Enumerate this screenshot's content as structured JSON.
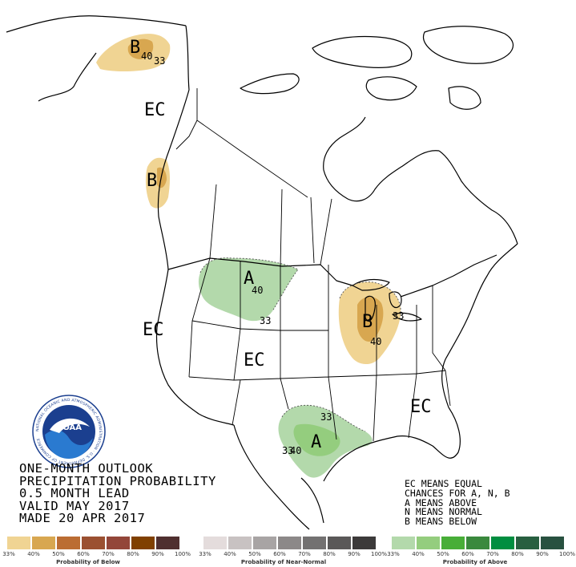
{
  "title_lines": [
    "ONE-MONTH OUTLOOK",
    "PRECIPITATION PROBABILITY",
    "0.5 MONTH LEAD",
    "VALID MAY 2017",
    "MADE 20 APR 2017"
  ],
  "legend_text": [
    "EC MEANS EQUAL",
    "CHANCES FOR A, N, B",
    "A MEANS ABOVE",
    "N MEANS NORMAL",
    "B MEANS BELOW"
  ],
  "map_labels": {
    "alaska_b": "B",
    "alaska_40": "40",
    "alaska_33": "33",
    "alaska_ec": "EC",
    "pacnw_b": "B",
    "plains_a": "A",
    "plains_40": "40",
    "plains_33": "33",
    "west_ec": "EC",
    "central_ec": "EC",
    "glakes_b": "B",
    "glakes_40": "40",
    "glakes_33": "33",
    "se_ec": "EC",
    "texas_a": "A",
    "texas_40": "40",
    "texas_33a": "33",
    "texas_33b": "33"
  },
  "logo": {
    "center_text": "NOAA",
    "ring_text": "NATIONAL OCEANIC AND ATMOSPHERIC ADMINISTRATION · U.S. DEPARTMENT OF COMMERCE"
  },
  "scales": {
    "below": {
      "title": "Probability of Below",
      "ticks": [
        "33%",
        "40%",
        "50%",
        "60%",
        "70%",
        "80%",
        "90%",
        "100%"
      ],
      "colors": [
        "#f0d493",
        "#d8a750",
        "#bb6d33",
        "#9b5031",
        "#934639",
        "#804000",
        "#4f2f2f"
      ]
    },
    "normal": {
      "title": "Probability of Near-Normal",
      "ticks": [
        "33%",
        "40%",
        "50%",
        "60%",
        "70%",
        "80%",
        "90%",
        "100%"
      ],
      "colors": [
        "#e4dcdc",
        "#c8c2c2",
        "#a8a4a4",
        "#8c8888",
        "#737171",
        "#5a5858",
        "#3c3a3a"
      ]
    },
    "above": {
      "title": "Probability of Above",
      "ticks": [
        "33%",
        "40%",
        "50%",
        "60%",
        "70%",
        "80%",
        "90%",
        "100%"
      ],
      "colors": [
        "#b3d9ab",
        "#94cd7e",
        "#48ae38",
        "#3a893d",
        "#008e40",
        "#285f40",
        "#285140"
      ]
    }
  },
  "colors": {
    "below_33": "#f0d493",
    "below_40": "#d8a750",
    "above_33": "#b3d9ab",
    "above_40": "#94cd7e"
  }
}
